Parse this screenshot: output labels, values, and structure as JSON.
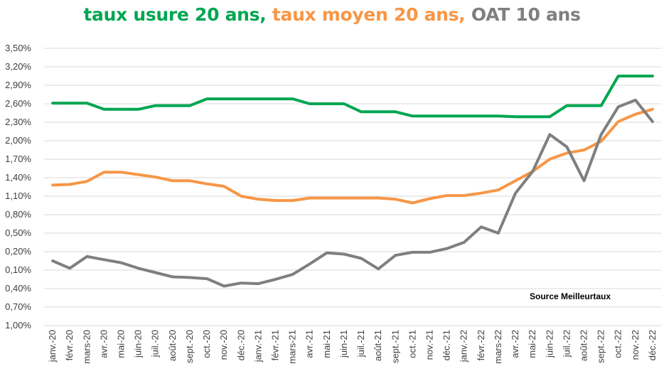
{
  "title": {
    "parts": [
      {
        "text": "taux usure 20 ans,",
        "color": "#00a651"
      },
      {
        "text": "taux moyen 20 ans,",
        "color": "#f79646"
      },
      {
        "text": "OAT 10 ans",
        "color": "#7f7f7f"
      }
    ]
  },
  "chart_data": {
    "type": "line",
    "y_tick_labels": [
      "3,50%",
      "3,20%",
      "2,90%",
      "2,60%",
      "2,30%",
      "2,00%",
      "1,70%",
      "1,40%",
      "1,10%",
      "0,80%",
      "0,50%",
      "0,20%",
      "0,10%",
      "0,40%",
      "0,70%",
      "1,00%"
    ],
    "y_ticks": [
      3.5,
      3.2,
      2.9,
      2.6,
      2.3,
      2.0,
      1.7,
      1.4,
      1.1,
      0.8,
      0.5,
      0.2,
      -0.1,
      -0.4,
      -0.7,
      -1.0
    ],
    "ylim": [
      -1.0,
      3.5
    ],
    "grid": true,
    "categories": [
      "janv.-20",
      "févr.-20",
      "mars-20",
      "avr.-20",
      "mai-20",
      "juin-20",
      "juil.-20",
      "août-20",
      "sept.-20",
      "oct.-20",
      "nov.-20",
      "déc.-20",
      "janv.-21",
      "févr.-21",
      "mars-21",
      "avr.-21",
      "mai-21",
      "juin-21",
      "juil.-21",
      "août-21",
      "sept.-21",
      "oct.-21",
      "nov.-21",
      "déc.-21",
      "janv.-22",
      "févr.-22",
      "mars-22",
      "avr.-22",
      "mai-22",
      "juin-22",
      "juil.-22",
      "août-22",
      "sept.-22",
      "oct.-22",
      "nov.-22",
      "déc.-22"
    ],
    "series": [
      {
        "name": "taux usure 20 ans",
        "color": "#00a651",
        "values": [
          2.61,
          2.61,
          2.61,
          2.51,
          2.51,
          2.51,
          2.57,
          2.57,
          2.57,
          2.68,
          2.68,
          2.68,
          2.68,
          2.68,
          2.68,
          2.6,
          2.6,
          2.6,
          2.47,
          2.47,
          2.47,
          2.4,
          2.4,
          2.4,
          2.4,
          2.4,
          2.4,
          2.39,
          2.39,
          2.39,
          2.57,
          2.57,
          2.57,
          3.05,
          3.05,
          3.05
        ]
      },
      {
        "name": "taux moyen 20 ans",
        "color": "#f79646",
        "values": [
          1.28,
          1.29,
          1.34,
          1.49,
          1.49,
          1.45,
          1.41,
          1.35,
          1.35,
          1.3,
          1.26,
          1.1,
          1.05,
          1.03,
          1.03,
          1.07,
          1.07,
          1.07,
          1.07,
          1.07,
          1.05,
          0.99,
          1.06,
          1.11,
          1.11,
          1.15,
          1.2,
          1.35,
          1.5,
          1.7,
          1.8,
          1.85,
          1.99,
          2.31,
          2.43,
          2.51
        ]
      },
      {
        "name": "OAT 10 ans",
        "color": "#7f7f7f",
        "values": [
          0.05,
          -0.07,
          0.12,
          0.07,
          0.02,
          -0.07,
          -0.14,
          -0.21,
          -0.22,
          -0.24,
          -0.36,
          -0.31,
          -0.32,
          -0.25,
          -0.17,
          0.0,
          0.18,
          0.16,
          0.09,
          -0.08,
          0.14,
          0.19,
          0.19,
          0.25,
          0.35,
          0.6,
          0.5,
          1.15,
          1.5,
          2.1,
          1.9,
          1.35,
          2.1,
          2.55,
          2.66,
          2.31
        ]
      }
    ],
    "annotation": "Source Meilleurtaux"
  }
}
